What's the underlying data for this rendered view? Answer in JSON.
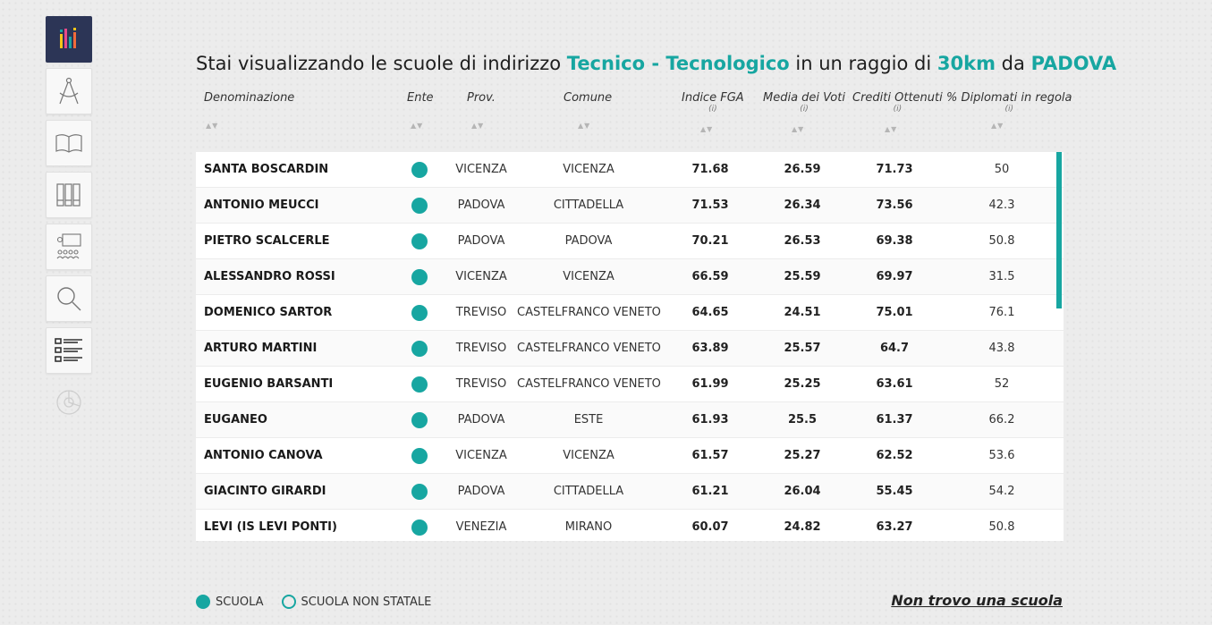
{
  "heading": {
    "prefix": "Stai visualizzando le scuole di indirizzo",
    "indirizzo": "Tecnico - Tecnologico",
    "mid": "in un raggio di",
    "radius": "30km",
    "da": "da",
    "city": "PADOVA"
  },
  "columns": {
    "denominazione": "Denominazione",
    "ente": "Ente",
    "prov": "Prov.",
    "comune": "Comune",
    "fga": "Indice FGA",
    "media": "Media dei Voti",
    "crediti": "Crediti Ottenuti",
    "diplomati": "% Diplomati in regola",
    "info": "(i)"
  },
  "rows": [
    {
      "name": "SANTA BOSCARDIN",
      "prov": "VICENZA",
      "comune": "VICENZA",
      "fga": "71.68",
      "media": "26.59",
      "crediti": "71.73",
      "dipl": "50"
    },
    {
      "name": "ANTONIO MEUCCI",
      "prov": "PADOVA",
      "comune": "CITTADELLA",
      "fga": "71.53",
      "media": "26.34",
      "crediti": "73.56",
      "dipl": "42.3"
    },
    {
      "name": "PIETRO SCALCERLE",
      "prov": "PADOVA",
      "comune": "PADOVA",
      "fga": "70.21",
      "media": "26.53",
      "crediti": "69.38",
      "dipl": "50.8"
    },
    {
      "name": "ALESSANDRO ROSSI",
      "prov": "VICENZA",
      "comune": "VICENZA",
      "fga": "66.59",
      "media": "25.59",
      "crediti": "69.97",
      "dipl": "31.5"
    },
    {
      "name": "DOMENICO SARTOR",
      "prov": "TREVISO",
      "comune": "CASTELFRANCO VENETO",
      "fga": "64.65",
      "media": "24.51",
      "crediti": "75.01",
      "dipl": "76.1"
    },
    {
      "name": "ARTURO MARTINI",
      "prov": "TREVISO",
      "comune": "CASTELFRANCO VENETO",
      "fga": "63.89",
      "media": "25.57",
      "crediti": "64.7",
      "dipl": "43.8"
    },
    {
      "name": "EUGENIO BARSANTI",
      "prov": "TREVISO",
      "comune": "CASTELFRANCO VENETO",
      "fga": "61.99",
      "media": "25.25",
      "crediti": "63.61",
      "dipl": "52"
    },
    {
      "name": "EUGANEO",
      "prov": "PADOVA",
      "comune": "ESTE",
      "fga": "61.93",
      "media": "25.5",
      "crediti": "61.37",
      "dipl": "66.2"
    },
    {
      "name": "ANTONIO CANOVA",
      "prov": "VICENZA",
      "comune": "VICENZA",
      "fga": "61.57",
      "media": "25.27",
      "crediti": "62.52",
      "dipl": "53.6"
    },
    {
      "name": "GIACINTO GIRARDI",
      "prov": "PADOVA",
      "comune": "CITTADELLA",
      "fga": "61.21",
      "media": "26.04",
      "crediti": "55.45",
      "dipl": "54.2"
    },
    {
      "name": "LEVI (IS LEVI PONTI)",
      "prov": "VENEZIA",
      "comune": "MIRANO",
      "fga": "60.07",
      "media": "24.82",
      "crediti": "63.27",
      "dipl": "50.8"
    }
  ],
  "legend": {
    "statale": "SCUOLA",
    "non_statale": "SCUOLA NON STATALE"
  },
  "not_found_link": "Non trovo una scuola",
  "colors": {
    "accent": "#17a6a1",
    "sidebar_active": "#2c3556"
  },
  "sidebar_icons": [
    "chart-icon",
    "compass-icon",
    "open-book-icon",
    "books-icon",
    "classroom-icon",
    "search-icon",
    "list-icon",
    "pie-chart-icon"
  ]
}
